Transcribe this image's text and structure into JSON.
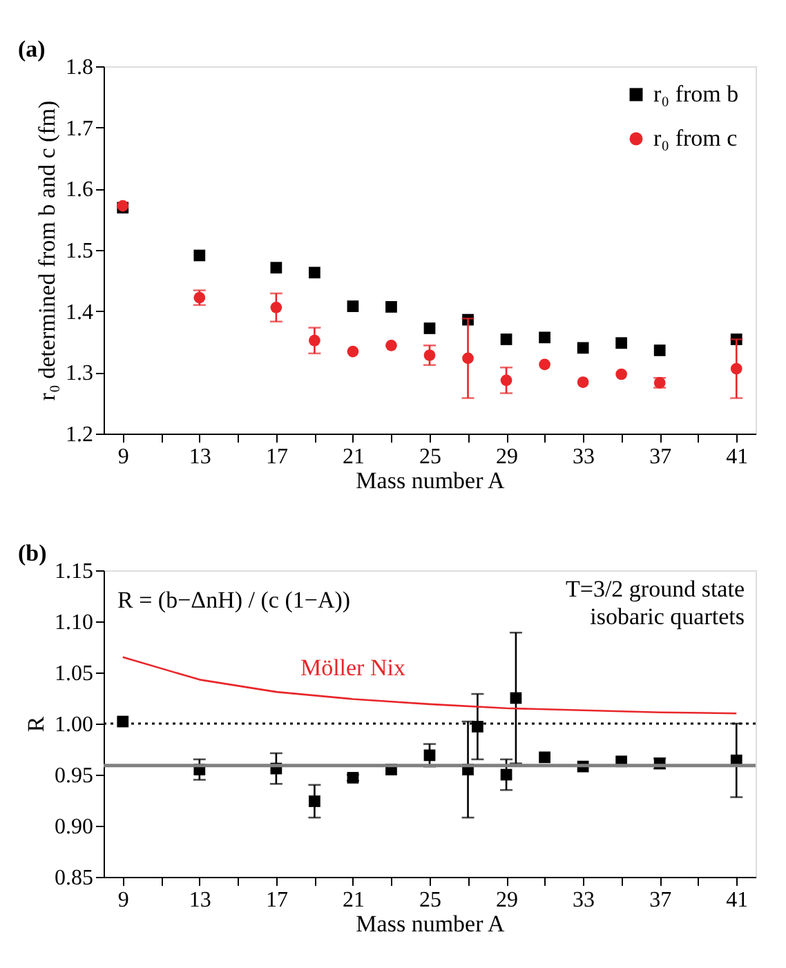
{
  "chart_data": [
    {
      "type": "scatter",
      "annotations": [
        "(a)"
      ],
      "xlabel": "Mass number A",
      "ylabel": "r₀ determined from b and c (fm)",
      "xlim": [
        8,
        42
      ],
      "ylim": [
        1.2,
        1.8
      ],
      "xticks": [
        9,
        {
          "value": 11,
          "label": null
        },
        13,
        {
          "value": 15,
          "label": null
        },
        17,
        {
          "value": 19,
          "label": null
        },
        21,
        {
          "value": 23,
          "label": null
        },
        25,
        {
          "value": 27,
          "label": null
        },
        29,
        {
          "value": 31,
          "label": null
        },
        33,
        {
          "value": 35,
          "label": null
        },
        37,
        {
          "value": 39,
          "label": null
        },
        41
      ],
      "yticks": [
        1.2,
        1.3,
        1.4,
        1.5,
        1.6,
        1.7,
        1.8
      ],
      "grid": false,
      "legend": "top right",
      "x": [
        9,
        13,
        17,
        19,
        21,
        23,
        25,
        27,
        29,
        31,
        33,
        35,
        37,
        41
      ],
      "series": [
        {
          "name": "r₀ from b",
          "color": "#000000",
          "marker": "square",
          "values": [
            1.569,
            1.491,
            1.471,
            1.463,
            1.408,
            1.407,
            1.372,
            1.386,
            1.354,
            1.357,
            1.34,
            1.348,
            1.336,
            1.354
          ]
        },
        {
          "name": "r₀ from c",
          "color": "#e8262a",
          "marker": "circle",
          "values": [
            1.572,
            1.422,
            1.406,
            1.352,
            1.334,
            1.344,
            1.328,
            1.323,
            1.287,
            1.313,
            1.284,
            1.297,
            1.283,
            1.306
          ],
          "errors": [
            null,
            0.012,
            0.023,
            0.021,
            null,
            null,
            0.016,
            0.065,
            0.021,
            null,
            null,
            null,
            0.008,
            0.048
          ]
        }
      ]
    },
    {
      "type": "scatter",
      "annotations": [
        "(b)",
        "R = (b−ΔnH) / (c (1−A))",
        "T=3/2  ground state\nisobaric quartets"
      ],
      "xlabel": "Mass number A",
      "ylabel": "R",
      "xlim": [
        8,
        42
      ],
      "ylim": [
        0.85,
        1.15
      ],
      "xticks": [
        9,
        {
          "value": 11,
          "label": null
        },
        13,
        {
          "value": 15,
          "label": null
        },
        17,
        {
          "value": 19,
          "label": null
        },
        21,
        {
          "value": 23,
          "label": null
        },
        25,
        {
          "value": 27,
          "label": null
        },
        29,
        {
          "value": 31,
          "label": null
        },
        33,
        {
          "value": 35,
          "label": null
        },
        37,
        {
          "value": 39,
          "label": null
        },
        41
      ],
      "yticks": [
        0.85,
        {
          "value": 0.9,
          "label": "0.90"
        },
        0.95,
        {
          "value": 1.0,
          "label": "1.00"
        },
        1.05,
        {
          "value": 1.1,
          "label": "1.10"
        },
        1.15
      ],
      "grid": false,
      "ref_lines": [
        {
          "axis": "y",
          "value": 1.0,
          "color": "#000000",
          "line_style": "dotted"
        },
        {
          "axis": "y",
          "value": 0.959,
          "color": "#808080",
          "line_style": "solid"
        }
      ],
      "series": [
        {
          "color": "#000000",
          "marker": "square",
          "x": [
            9,
            13,
            17,
            19,
            21,
            23,
            25,
            27,
            29,
            31,
            33,
            35,
            37,
            41
          ],
          "values": [
            1.002,
            0.955,
            0.956,
            0.924,
            0.947,
            0.955,
            0.969,
            0.955,
            0.95,
            0.967,
            0.958,
            0.963,
            0.961,
            0.964
          ],
          "errors": [
            null,
            0.01,
            0.015,
            0.016,
            0.003,
            null,
            0.011,
            0.047,
            0.015,
            null,
            null,
            null,
            0.005,
            0.036
          ]
        },
        {
          "color": "#000000",
          "marker": "square",
          "x": [
            27.5,
            29.5
          ],
          "values": [
            0.997,
            1.025
          ],
          "errors": [
            0.032,
            0.064
          ]
        },
        {
          "type": "line",
          "name": "Möller Nix",
          "color": "#e8262a",
          "x": [
            9,
            13,
            17,
            21,
            25,
            29,
            33,
            37,
            41
          ],
          "values": [
            1.065,
            1.043,
            1.031,
            1.024,
            1.019,
            1.015,
            1.013,
            1.011,
            1.01
          ]
        }
      ]
    }
  ]
}
